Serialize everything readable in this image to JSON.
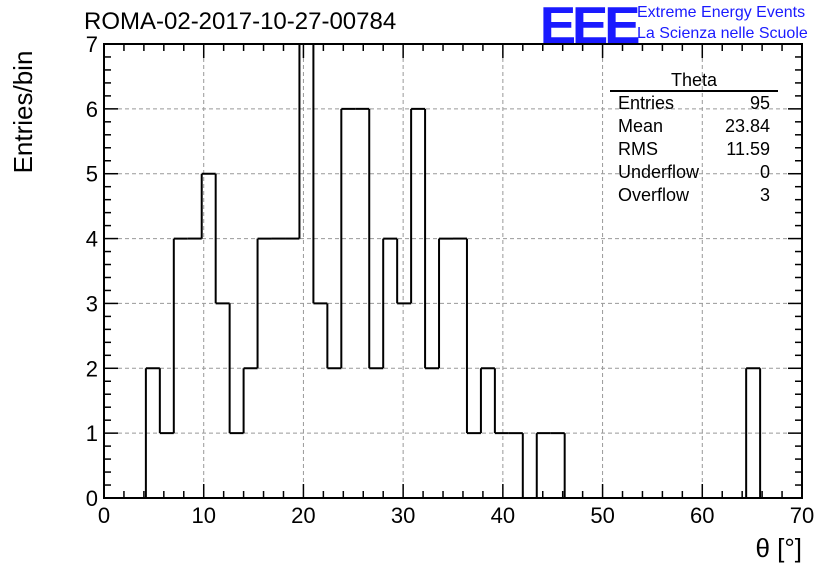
{
  "header": {
    "run_id": "ROMA-02-2017-10-27-00784",
    "logo_text": "EEE",
    "logo_line1": "Extreme Energy Events",
    "logo_line2": "La Scienza nelle Scuole"
  },
  "stats_box": {
    "title": "Theta",
    "rows": [
      {
        "label": "Entries",
        "value": "95"
      },
      {
        "label": "Mean",
        "value": "23.84"
      },
      {
        "label": "RMS",
        "value": "11.59"
      },
      {
        "label": "Underflow",
        "value": "0"
      },
      {
        "label": "Overflow",
        "value": "3"
      }
    ]
  },
  "chart_data": {
    "type": "bar",
    "histogram": "step",
    "xlabel": "θ [°]",
    "ylabel": "Entries/bin",
    "xlim": [
      0,
      70
    ],
    "ylim": [
      0,
      7
    ],
    "x_ticks": [
      0,
      10,
      20,
      30,
      40,
      50,
      60,
      70
    ],
    "y_ticks": [
      0,
      1,
      2,
      3,
      4,
      5,
      6,
      7
    ],
    "grid": true,
    "bin_width": 1.4,
    "bin_edges_start": 0,
    "values": [
      0,
      0,
      0,
      2,
      1,
      4,
      4,
      5,
      3,
      1,
      2,
      4,
      4,
      4,
      7,
      3,
      2,
      6,
      6,
      2,
      4,
      3,
      6,
      2,
      4,
      4,
      1,
      2,
      1,
      1,
      0,
      1,
      1,
      0,
      0,
      0,
      0,
      0,
      0,
      0,
      0,
      0,
      0,
      0,
      0,
      0,
      2,
      0,
      0,
      0
    ],
    "line_color": "#000000"
  }
}
